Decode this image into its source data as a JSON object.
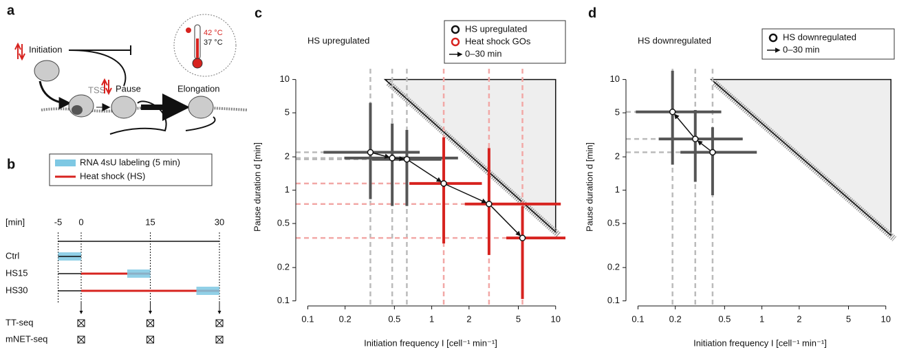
{
  "panel_letters": [
    "a",
    "b",
    "c",
    "d"
  ],
  "panel_a": {
    "initiation": "Initiation",
    "tss": "TSS",
    "pause": "Pause",
    "elongation": "Elongation",
    "temp_high": "42 °C",
    "temp_low": "37 °C"
  },
  "panel_b": {
    "legend": [
      "RNA 4sU labeling (5 min)",
      "Heat shock (HS)"
    ],
    "labeling_color": "#7ec8e3",
    "heat_shock_color": "#d7231f",
    "unit": "[min]",
    "time_ticks": [
      -5,
      0,
      15,
      30
    ],
    "sample_times": [
      0,
      15,
      30
    ],
    "rows": [
      {
        "label": "Ctrl",
        "labeling": [
          -5,
          0
        ]
      },
      {
        "label": "HS15",
        "labeling": [
          10,
          15
        ],
        "heat_shock": [
          0,
          15
        ]
      },
      {
        "label": "HS30",
        "labeling": [
          25,
          30
        ],
        "heat_shock": [
          0,
          30
        ]
      }
    ],
    "readouts": [
      "TT-seq",
      "mNET-seq"
    ]
  },
  "chart_data": [
    {
      "type": "scatter",
      "title": "HS upregulated",
      "xlabel": "Initiation frequency I [cell⁻¹ min⁻¹]",
      "ylabel": "Pause duration d [min]",
      "log_x": true,
      "log_y": true,
      "xlim": [
        0.08,
        12
      ],
      "ylim": [
        0.09,
        12.5
      ],
      "xticks": [
        0.1,
        0.2,
        0.5,
        1,
        2,
        5,
        10
      ],
      "yticks": [
        0.1,
        0.2,
        0.5,
        1,
        2,
        5,
        10
      ],
      "arrow_label": "0–30 min",
      "feasible_region": {
        "x": [
          0.42,
          10,
          10
        ],
        "y": [
          10,
          10,
          0.42
        ]
      },
      "series": [
        {
          "name": "HS upregulated",
          "color": "#111111",
          "error_color": "#555555",
          "ref_color": "#bbbbbb",
          "x": [
            0.32,
            0.48,
            0.63
          ],
          "y": [
            2.2,
            1.95,
            1.9
          ],
          "x_low": [
            0.134,
            0.197,
            0.33
          ],
          "x_high": [
            0.8,
            1.63,
            1.2
          ],
          "y_low": [
            0.83,
            0.72,
            0.72
          ],
          "y_high": [
            6.15,
            4.0,
            3.5
          ]
        },
        {
          "name": "Heat shock GOs",
          "color": "#d7231f",
          "error_color": "#d7231f",
          "ref_color": "#f2a8a6",
          "x": [
            1.25,
            2.9,
            5.4
          ],
          "y": [
            1.15,
            0.75,
            0.37
          ],
          "x_low": [
            0.66,
            1.85,
            4.0
          ],
          "x_high": [
            2.54,
            11,
            12
          ],
          "y_low": [
            0.33,
            0.26,
            0.104
          ],
          "y_high": [
            3.0,
            2.4,
            0.72
          ]
        }
      ]
    },
    {
      "type": "scatter",
      "title": "HS downregulated",
      "xlabel": "Initiation frequency I [cell⁻¹ min⁻¹]",
      "ylabel": "Pause duration d [min]",
      "log_x": true,
      "log_y": true,
      "xlim": [
        0.08,
        11.7
      ],
      "ylim": [
        0.09,
        12.5
      ],
      "xticks": [
        0.1,
        0.2,
        0.5,
        1,
        2,
        5,
        10
      ],
      "yticks": [
        0.1,
        0.2,
        0.5,
        1,
        2,
        5,
        10
      ],
      "arrow_label": "0–30 min",
      "feasible_region": {
        "x": [
          0.39,
          11,
          11
        ],
        "y": [
          10,
          10,
          0.39
        ]
      },
      "series": [
        {
          "name": "HS downregulated",
          "color": "#111111",
          "error_color": "#555555",
          "ref_color": "#bbbbbb",
          "x": [
            0.4,
            0.29,
            0.19
          ],
          "y": [
            2.2,
            2.9,
            5.1
          ],
          "x_low": [
            0.22,
            0.147,
            0.096
          ],
          "x_high": [
            0.91,
            0.7,
            0.47
          ],
          "y_low": [
            0.9,
            1.19,
            1.7
          ],
          "y_high": [
            3.7,
            5.3,
            12
          ]
        }
      ]
    }
  ]
}
